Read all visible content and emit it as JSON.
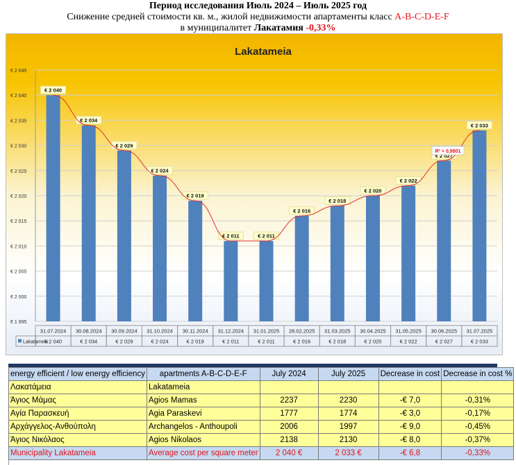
{
  "header": {
    "line1": "Период исследования Июль 2024 – Июль 2025 год",
    "line2_prefix": "Снижение средней стоимости кв. м., жилой недвижимости апартаменты класс ",
    "line2_class": "A-B-C-D-E-F",
    "line3_prefix": "в муниципалитет  ",
    "line3_city": "Лакатамия",
    "line3_pct": " -0,33%"
  },
  "chart_data": {
    "type": "bar",
    "title": "Lakatameia",
    "categories": [
      "31.07.2024",
      "30.08.2024",
      "30.09.2024",
      "31.10.2024",
      "30.11.2024",
      "31.12.2024",
      "31.01.2025",
      "28.02.2025",
      "31.03.2025",
      "30.04.2025",
      "31.05.2025",
      "30.06.2025",
      "31.07.2025"
    ],
    "series": [
      {
        "name": "Lakatameia",
        "values": [
          2040,
          2034,
          2029,
          2024,
          2019,
          2011,
          2011,
          2016,
          2018,
          2020,
          2022,
          2027,
          2033
        ],
        "labels": [
          "€ 2 040",
          "€ 2 034",
          "€ 2 029",
          "€ 2 024",
          "€ 2 019",
          "€ 2 011",
          "€ 2 011",
          "€ 2 016",
          "€ 2 018",
          "€ 2 020",
          "€ 2 022",
          "€ 2 027",
          "€ 2 033"
        ]
      }
    ],
    "ylim": [
      1995,
      2045
    ],
    "yticks": [
      1995,
      2000,
      2005,
      2010,
      2015,
      2020,
      2025,
      2030,
      2035,
      2040,
      2045
    ],
    "ytick_labels": [
      "€ 1 995",
      "€ 2 000",
      "€ 2 005",
      "€ 2 010",
      "€ 2 015",
      "€ 2 020",
      "€ 2 025",
      "€ 2 030",
      "€ 2 035",
      "€ 2 040",
      "€ 2 045"
    ],
    "trendline": {
      "type": "polynomial",
      "r2_label": "R² = 0,9801"
    },
    "grid": true,
    "legend": "data-table",
    "colors": {
      "bar": "#4f81bd",
      "trend": "#e03030"
    }
  },
  "table": {
    "headers": [
      "energy efficient / low energy efficiency",
      "apartments A-B-C-D-E-F",
      "July 2024",
      "July 2025",
      "Decrease in cost",
      "Decrease in cost  %"
    ],
    "rows": [
      [
        "Λακατάμεια",
        "Lakatameia",
        "",
        "",
        "",
        ""
      ],
      [
        "Άγιος Μάμας",
        "Agios Mamas",
        "2237",
        "2230",
        "-€ 7,0",
        "-0,31%"
      ],
      [
        "Αγία Παρασκευή",
        "Agia Paraskevi",
        "1777",
        "1774",
        "-€ 3,0",
        "-0,17%"
      ],
      [
        "Αρχάγγελος-Ανθούπολη",
        "Archangelos - Anthoupoli",
        "2006",
        "1997",
        "-€ 9,0",
        "-0,45%"
      ],
      [
        "Άγιος Νικόλαος",
        "Agios Nikolaos",
        "2138",
        "2130",
        "-€ 8,0",
        "-0,37%"
      ]
    ],
    "summary": [
      "Municipality  Lakatameia",
      "Average cost per square meter",
      "2 040 €",
      "2 033 €",
      "-€ 6,8",
      "-0,33%"
    ]
  }
}
